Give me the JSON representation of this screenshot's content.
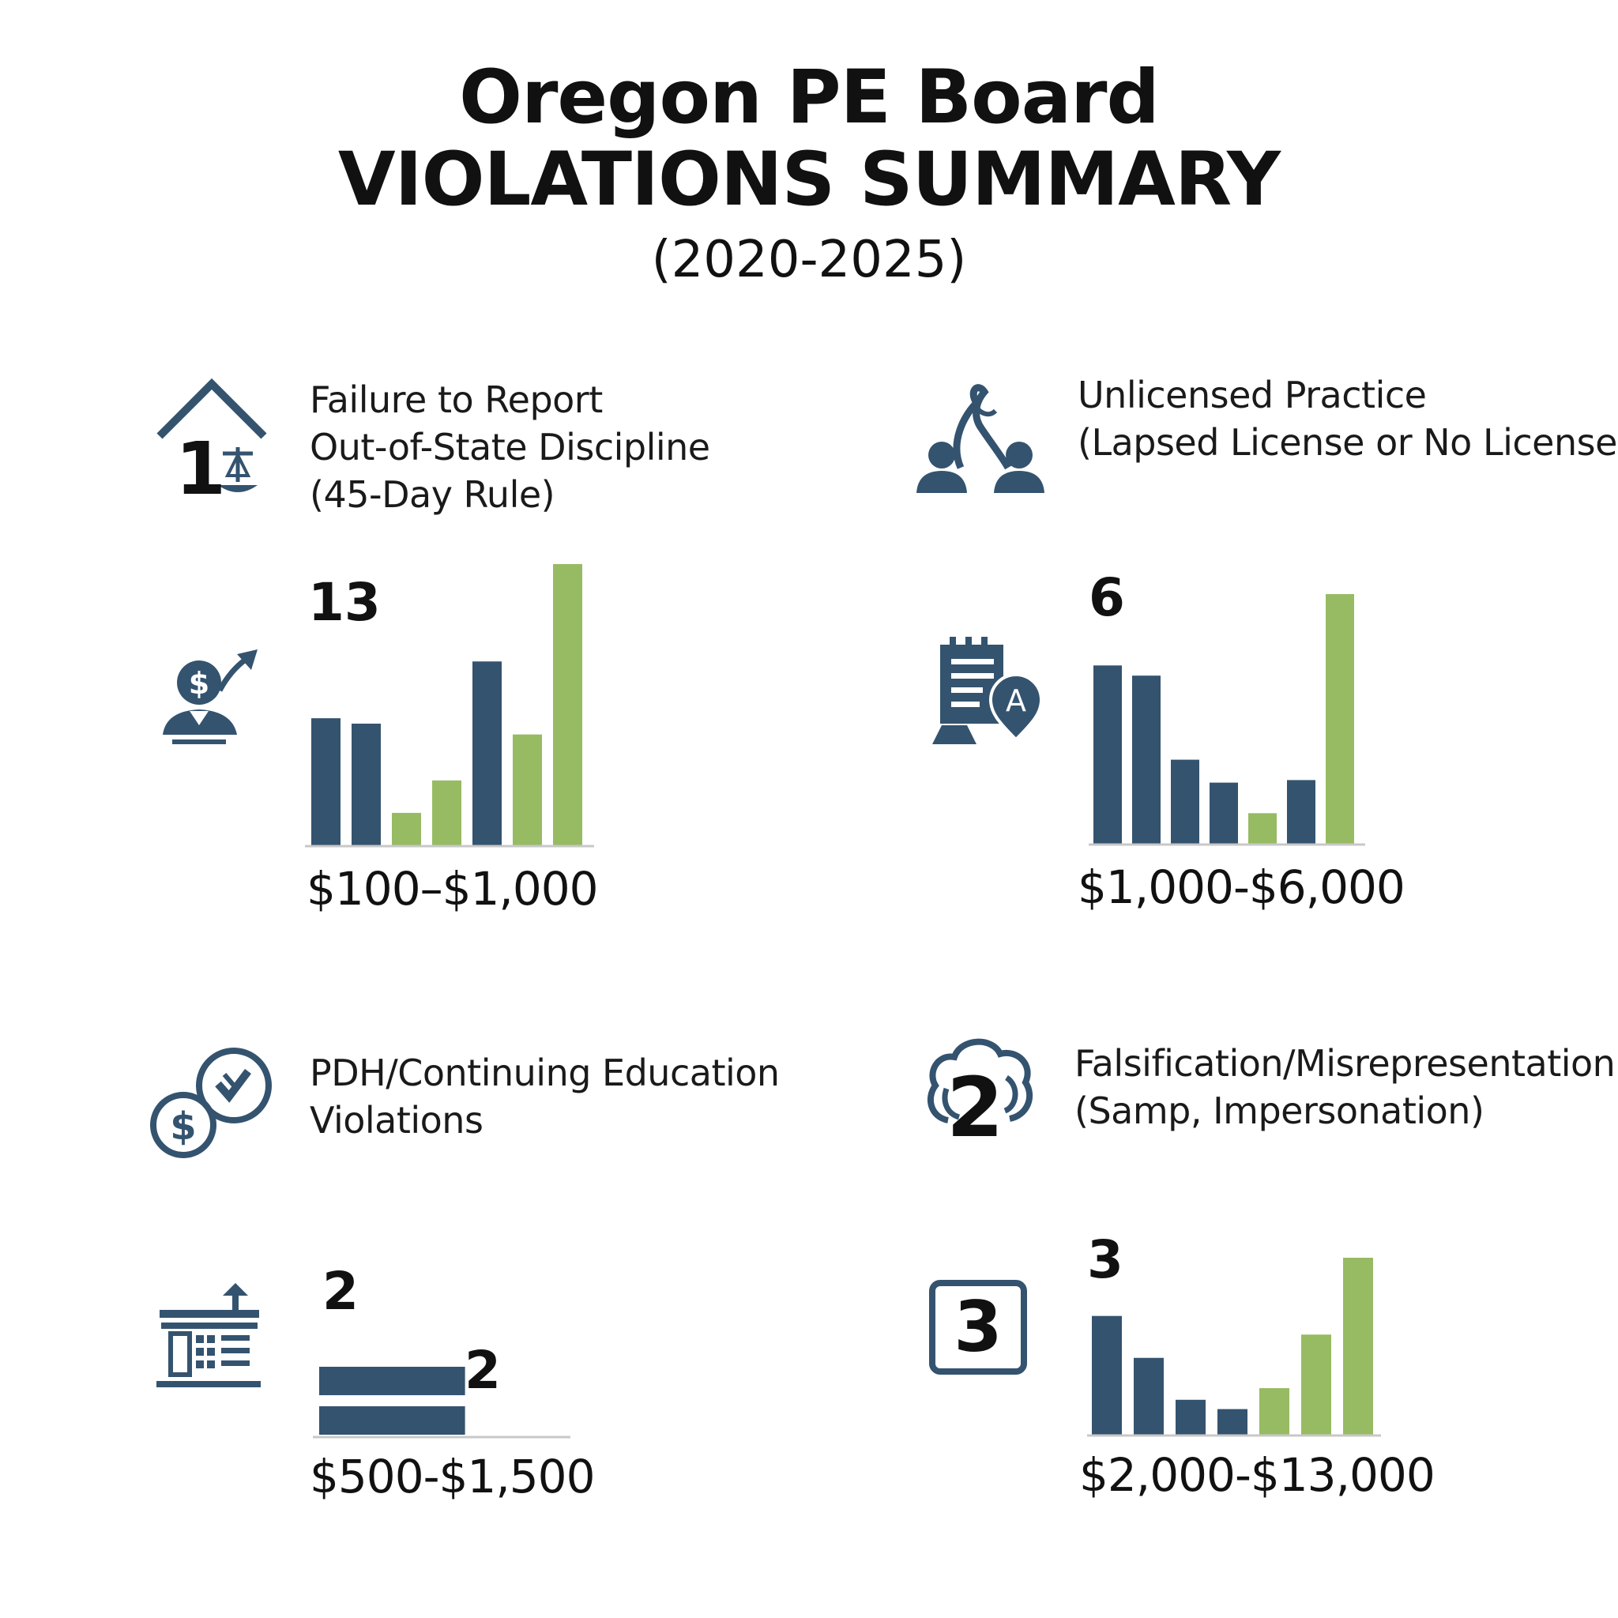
{
  "title": {
    "line1": "Oregon PE Board",
    "line2": "VIOLATIONS SUMMARY",
    "line3": "(2020-2025)"
  },
  "colors": {
    "primary_blue": "#34536f",
    "accent_green": "#97bb62",
    "axis_gray": "#c8c8c8",
    "text": "#111111"
  },
  "panels": [
    {
      "title_lines": [
        "Failure to Report",
        "Out-of-State Discipline",
        "(45-Day Rule)"
      ],
      "header_icon": "house-scale-icon",
      "header_numeral": "1",
      "side_icon": "dollar-person-arrow-icon",
      "count": "13",
      "range": "$100–$1,000"
    },
    {
      "title_lines": [
        "Unlicensed Practice",
        "(Lapsed License or No License)"
      ],
      "header_icon": "people-network-icon",
      "side_icon": "clipboard-badge-icon",
      "count": "6",
      "range": "$1,000-$6,000"
    },
    {
      "title_lines": [
        "PDH/Continuing Education",
        "Violations"
      ],
      "header_icon": "coins-check-icon",
      "side_icon": "building-ledger-icon",
      "count": "2",
      "bar_label": "2",
      "range": "$500-$1,500"
    },
    {
      "title_lines": [
        "Falsification/Misrepresentation",
        "(Samp, Impersonation)"
      ],
      "header_icon": "cloud-numeral-icon",
      "header_numeral": "2",
      "side_icon": "boxed-numeral-icon",
      "side_numeral": "3",
      "count": "3",
      "range": "$2,000-$13,000"
    }
  ],
  "chart_data": [
    {
      "type": "bar",
      "orientation": "vertical",
      "y_axis_shown": false,
      "values": [
        4.7,
        4.5,
        1.2,
        2.4,
        6.8,
        4.1,
        10.4
      ],
      "colors": [
        "#34536f",
        "#34536f",
        "#97bb62",
        "#97bb62",
        "#34536f",
        "#97bb62",
        "#97bb62"
      ],
      "ylim": [
        0,
        10.4
      ]
    },
    {
      "type": "bar",
      "orientation": "vertical",
      "y_axis_shown": false,
      "values": [
        7.0,
        6.6,
        3.3,
        2.4,
        1.2,
        2.5,
        9.8
      ],
      "colors": [
        "#34536f",
        "#34536f",
        "#34536f",
        "#34536f",
        "#97bb62",
        "#34536f",
        "#97bb62"
      ],
      "ylim": [
        0,
        9.8
      ]
    },
    {
      "type": "bar",
      "orientation": "horizontal",
      "x_axis_shown": false,
      "values": [
        2,
        2
      ],
      "colors": [
        "#34536f",
        "#34536f"
      ],
      "xlim": [
        0,
        3.25
      ]
    },
    {
      "type": "bar",
      "orientation": "vertical",
      "y_axis_shown": false,
      "values": [
        5.1,
        3.3,
        1.5,
        1.1,
        2.0,
        4.3,
        7.6
      ],
      "colors": [
        "#34536f",
        "#34536f",
        "#34536f",
        "#34536f",
        "#97bb62",
        "#97bb62",
        "#97bb62"
      ],
      "ylim": [
        0,
        7.6
      ]
    }
  ]
}
